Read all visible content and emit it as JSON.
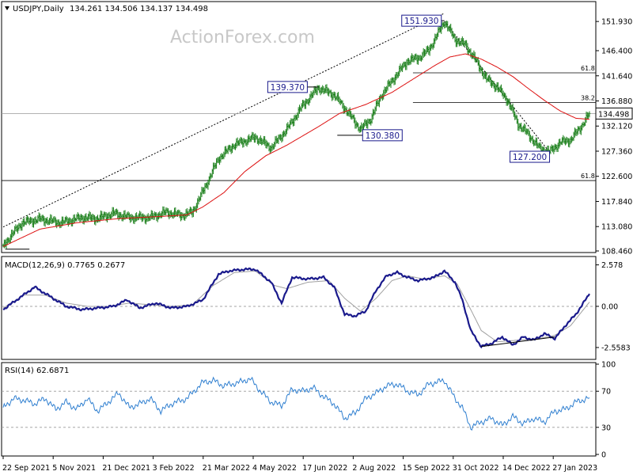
{
  "header": {
    "symbol": "USDJPY,Daily",
    "ohlc": "134.261 134.506 134.137 134.498",
    "watermark": "ActionForex.com"
  },
  "colors": {
    "price_bar": "#1a7f1a",
    "ma": "#dd1111",
    "macd": "#1a1a8c",
    "signal": "#a0a0a0",
    "rsi": "#2f7fd0",
    "label_box": "#1a1a8c"
  },
  "x_labels": [
    "22 Sep 2021",
    "5 Nov 2021",
    "21 Dec 2021",
    "3 Feb 2022",
    "21 Mar 2022",
    "4 May 2022",
    "17 Jun 2022",
    "2 Aug 2022",
    "15 Sep 2022",
    "31 Oct 2022",
    "14 Dec 2022",
    "27 Jan 2023"
  ],
  "chart_data": [
    {
      "type": "line",
      "panel": "price",
      "ylim": [
        108.46,
        155.4
      ],
      "y_ticks": [
        "151.930",
        "146.400",
        "141.640",
        "136.880",
        "132.120",
        "127.360",
        "122.600",
        "117.840",
        "113.080",
        "108.460"
      ],
      "y_tick_values": [
        151.93,
        146.4,
        141.64,
        136.88,
        132.12,
        127.36,
        122.6,
        117.84,
        113.08,
        108.46
      ],
      "current_price": 134.498,
      "current_label": "134.498",
      "price_keypoints": [
        [
          0,
          109.5
        ],
        [
          8,
          111.5
        ],
        [
          18,
          113.8
        ],
        [
          35,
          114.5
        ],
        [
          55,
          113.8
        ],
        [
          75,
          114.8
        ],
        [
          90,
          114.6
        ],
        [
          105,
          115.6
        ],
        [
          120,
          114.8
        ],
        [
          140,
          114.8
        ],
        [
          155,
          115.8
        ],
        [
          170,
          115.2
        ],
        [
          180,
          115.8
        ],
        [
          192,
          120.5
        ],
        [
          205,
          126.0
        ],
        [
          220,
          128.6
        ],
        [
          240,
          130.0
        ],
        [
          255,
          128.0
        ],
        [
          270,
          131.5
        ],
        [
          285,
          136.0
        ],
        [
          300,
          139.37
        ],
        [
          315,
          138.0
        ],
        [
          325,
          135.5
        ],
        [
          340,
          131.5
        ],
        [
          350,
          133.5
        ],
        [
          360,
          138.0
        ],
        [
          375,
          142.0
        ],
        [
          385,
          144.5
        ],
        [
          395,
          145.0
        ],
        [
          405,
          146.5
        ],
        [
          420,
          151.93
        ],
        [
          430,
          148.5
        ],
        [
          440,
          147.5
        ],
        [
          450,
          144.5
        ],
        [
          460,
          141.0
        ],
        [
          470,
          139.5
        ],
        [
          480,
          137.0
        ],
        [
          490,
          132.5
        ],
        [
          500,
          130.5
        ],
        [
          510,
          128.0
        ],
        [
          520,
          127.2
        ],
        [
          530,
          129.0
        ],
        [
          540,
          129.5
        ],
        [
          550,
          132.0
        ],
        [
          558,
          134.498
        ]
      ],
      "ma_keypoints": [
        [
          0,
          109.3
        ],
        [
          35,
          112.6
        ],
        [
          70,
          113.8
        ],
        [
          110,
          114.6
        ],
        [
          150,
          115.0
        ],
        [
          175,
          115.3
        ],
        [
          190,
          116.8
        ],
        [
          210,
          119.5
        ],
        [
          230,
          123.5
        ],
        [
          250,
          126.5
        ],
        [
          270,
          128.5
        ],
        [
          300,
          132.0
        ],
        [
          320,
          134.5
        ],
        [
          345,
          136.2
        ],
        [
          370,
          138.5
        ],
        [
          390,
          141.0
        ],
        [
          410,
          143.5
        ],
        [
          425,
          145.2
        ],
        [
          440,
          145.8
        ],
        [
          455,
          144.8
        ],
        [
          470,
          143.3
        ],
        [
          485,
          141.5
        ],
        [
          500,
          139.2
        ],
        [
          515,
          137.0
        ],
        [
          530,
          135.0
        ],
        [
          545,
          133.6
        ],
        [
          558,
          133.4
        ]
      ],
      "annotations": [
        {
          "label": "151.930",
          "x": 420,
          "y": 151.93
        },
        {
          "label": "139.370",
          "x": 300,
          "y": 139.37
        },
        {
          "label": "130.380",
          "x": 318,
          "y": 130.38
        },
        {
          "label": "127.200",
          "x": 520,
          "y": 127.2
        }
      ],
      "fib_lines": [
        {
          "label": "61.8",
          "y": 142.2
        },
        {
          "label": "38.2",
          "y": 136.6
        },
        {
          "label": "61.8",
          "y": 121.8
        }
      ]
    },
    {
      "type": "line",
      "panel": "macd",
      "title": "MACD(12,26,9) 0.7765 0.2677",
      "ylim": [
        -3.2,
        3.0
      ],
      "y_ticks": [
        "2.578",
        "0.00",
        "-2.5583"
      ],
      "y_tick_values": [
        2.578,
        0.0,
        -2.5583
      ],
      "macd_keypoints": [
        [
          0,
          -0.2
        ],
        [
          15,
          0.5
        ],
        [
          30,
          1.2
        ],
        [
          45,
          0.6
        ],
        [
          60,
          0.0
        ],
        [
          75,
          -0.2
        ],
        [
          90,
          -0.1
        ],
        [
          105,
          0.0
        ],
        [
          118,
          0.4
        ],
        [
          130,
          -0.1
        ],
        [
          145,
          0.2
        ],
        [
          160,
          -0.1
        ],
        [
          175,
          0.0
        ],
        [
          190,
          0.4
        ],
        [
          205,
          2.0
        ],
        [
          215,
          2.2
        ],
        [
          230,
          2.3
        ],
        [
          240,
          2.3
        ],
        [
          255,
          1.5
        ],
        [
          265,
          0.2
        ],
        [
          275,
          1.8
        ],
        [
          290,
          1.7
        ],
        [
          305,
          1.8
        ],
        [
          315,
          1.2
        ],
        [
          325,
          -0.5
        ],
        [
          335,
          -0.6
        ],
        [
          345,
          -0.3
        ],
        [
          355,
          1.0
        ],
        [
          365,
          1.9
        ],
        [
          375,
          2.1
        ],
        [
          385,
          1.8
        ],
        [
          395,
          1.6
        ],
        [
          410,
          1.8
        ],
        [
          420,
          2.2
        ],
        [
          430,
          1.5
        ],
        [
          437,
          0.4
        ],
        [
          445,
          -1.5
        ],
        [
          455,
          -2.5
        ],
        [
          465,
          -2.3
        ],
        [
          475,
          -1.9
        ],
        [
          485,
          -2.4
        ],
        [
          495,
          -1.9
        ],
        [
          505,
          -2.1
        ],
        [
          515,
          -1.7
        ],
        [
          525,
          -2.0
        ],
        [
          535,
          -1.2
        ],
        [
          545,
          -0.5
        ],
        [
          558,
          0.7765
        ]
      ],
      "signal_keypoints": [
        [
          0,
          -0.1
        ],
        [
          20,
          0.7
        ],
        [
          40,
          0.7
        ],
        [
          60,
          0.2
        ],
        [
          80,
          0.0
        ],
        [
          100,
          0.0
        ],
        [
          120,
          0.2
        ],
        [
          140,
          0.1
        ],
        [
          160,
          0.0
        ],
        [
          180,
          0.1
        ],
        [
          200,
          1.3
        ],
        [
          220,
          2.1
        ],
        [
          240,
          2.2
        ],
        [
          258,
          1.3
        ],
        [
          270,
          1.1
        ],
        [
          290,
          1.5
        ],
        [
          310,
          1.6
        ],
        [
          325,
          0.5
        ],
        [
          340,
          -0.3
        ],
        [
          355,
          0.5
        ],
        [
          370,
          1.6
        ],
        [
          385,
          1.9
        ],
        [
          400,
          1.7
        ],
        [
          420,
          1.9
        ],
        [
          432,
          1.4
        ],
        [
          445,
          -0.2
        ],
        [
          455,
          -1.5
        ],
        [
          470,
          -2.2
        ],
        [
          490,
          -2.1
        ],
        [
          510,
          -2.0
        ],
        [
          525,
          -1.8
        ],
        [
          540,
          -1.2
        ],
        [
          558,
          0.2677
        ]
      ],
      "trendline": [
        [
          455,
          -2.5
        ],
        [
          525,
          -1.9
        ]
      ]
    },
    {
      "type": "line",
      "panel": "rsi",
      "title": "RSI(14) 62.6871",
      "ylim": [
        0,
        100
      ],
      "y_ticks": [
        "100",
        "70",
        "30",
        "0"
      ],
      "y_tick_values": [
        100,
        70,
        30,
        0
      ],
      "rsi_keypoints": [
        [
          0,
          52
        ],
        [
          10,
          62
        ],
        [
          20,
          60
        ],
        [
          30,
          56
        ],
        [
          40,
          62
        ],
        [
          50,
          50
        ],
        [
          60,
          58
        ],
        [
          70,
          50
        ],
        [
          80,
          62
        ],
        [
          90,
          48
        ],
        [
          100,
          58
        ],
        [
          110,
          68
        ],
        [
          120,
          52
        ],
        [
          130,
          56
        ],
        [
          140,
          62
        ],
        [
          150,
          48
        ],
        [
          160,
          56
        ],
        [
          175,
          62
        ],
        [
          190,
          80
        ],
        [
          200,
          82
        ],
        [
          210,
          76
        ],
        [
          225,
          80
        ],
        [
          235,
          84
        ],
        [
          245,
          70
        ],
        [
          255,
          58
        ],
        [
          265,
          54
        ],
        [
          275,
          72
        ],
        [
          285,
          70
        ],
        [
          295,
          74
        ],
        [
          305,
          64
        ],
        [
          315,
          56
        ],
        [
          325,
          40
        ],
        [
          335,
          46
        ],
        [
          345,
          62
        ],
        [
          355,
          68
        ],
        [
          365,
          76
        ],
        [
          375,
          78
        ],
        [
          385,
          70
        ],
        [
          395,
          66
        ],
        [
          405,
          78
        ],
        [
          420,
          82
        ],
        [
          430,
          62
        ],
        [
          437,
          52
        ],
        [
          445,
          30
        ],
        [
          455,
          36
        ],
        [
          465,
          40
        ],
        [
          475,
          32
        ],
        [
          485,
          42
        ],
        [
          495,
          34
        ],
        [
          505,
          40
        ],
        [
          515,
          36
        ],
        [
          525,
          48
        ],
        [
          535,
          50
        ],
        [
          545,
          58
        ],
        [
          558,
          62.6871
        ]
      ]
    }
  ]
}
